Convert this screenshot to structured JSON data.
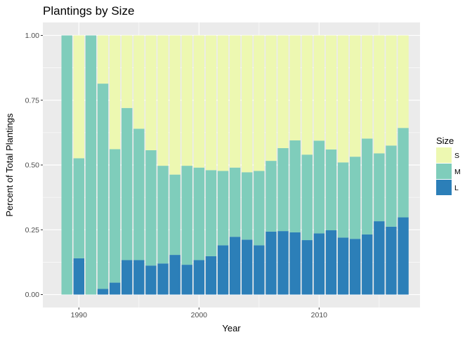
{
  "chart_data": {
    "type": "bar",
    "stacked": true,
    "title": "Plantings by Size",
    "xlabel": "Year",
    "ylabel": "Percent of Total Plantings",
    "xlim": [
      1987.0,
      2018.4
    ],
    "ylim": [
      -0.05,
      1.05
    ],
    "x_ticks": [
      1990,
      2000,
      2010
    ],
    "y_ticks": [
      0.0,
      0.25,
      0.5,
      0.75,
      1.0
    ],
    "y_tick_labels": [
      "0.00",
      "0.25",
      "0.50",
      "0.75",
      "1.00"
    ],
    "grid": true,
    "legend_position": "right",
    "legend_title": "Size",
    "years": [
      1989,
      1990,
      1991,
      1992,
      1993,
      1994,
      1995,
      1996,
      1997,
      1998,
      1999,
      2000,
      2001,
      2002,
      2003,
      2004,
      2005,
      2006,
      2007,
      2008,
      2009,
      2010,
      2011,
      2012,
      2013,
      2014,
      2015,
      2016,
      2017
    ],
    "series": [
      {
        "name": "L",
        "color": "#2c7fb8",
        "values": [
          0.0,
          0.14,
          0.0,
          0.022,
          0.046,
          0.133,
          0.133,
          0.112,
          0.12,
          0.153,
          0.115,
          0.133,
          0.148,
          0.19,
          0.223,
          0.212,
          0.19,
          0.243,
          0.245,
          0.24,
          0.21,
          0.236,
          0.248,
          0.22,
          0.215,
          0.232,
          0.283,
          0.262,
          0.298
        ]
      },
      {
        "name": "M",
        "color": "#7fcdbb",
        "values": [
          1.0,
          0.386,
          1.0,
          0.792,
          0.515,
          0.587,
          0.507,
          0.445,
          0.377,
          0.31,
          0.382,
          0.357,
          0.332,
          0.287,
          0.267,
          0.26,
          0.287,
          0.273,
          0.32,
          0.355,
          0.33,
          0.358,
          0.312,
          0.29,
          0.317,
          0.37,
          0.262,
          0.313,
          0.345
        ]
      },
      {
        "name": "S",
        "color": "#edf8b1",
        "values": [
          0.0,
          0.474,
          0.0,
          0.186,
          0.439,
          0.28,
          0.36,
          0.443,
          0.503,
          0.537,
          0.503,
          0.51,
          0.52,
          0.523,
          0.51,
          0.528,
          0.523,
          0.484,
          0.435,
          0.405,
          0.46,
          0.406,
          0.44,
          0.49,
          0.468,
          0.398,
          0.455,
          0.425,
          0.357
        ]
      }
    ],
    "legend_order": [
      "S",
      "M",
      "L"
    ]
  }
}
